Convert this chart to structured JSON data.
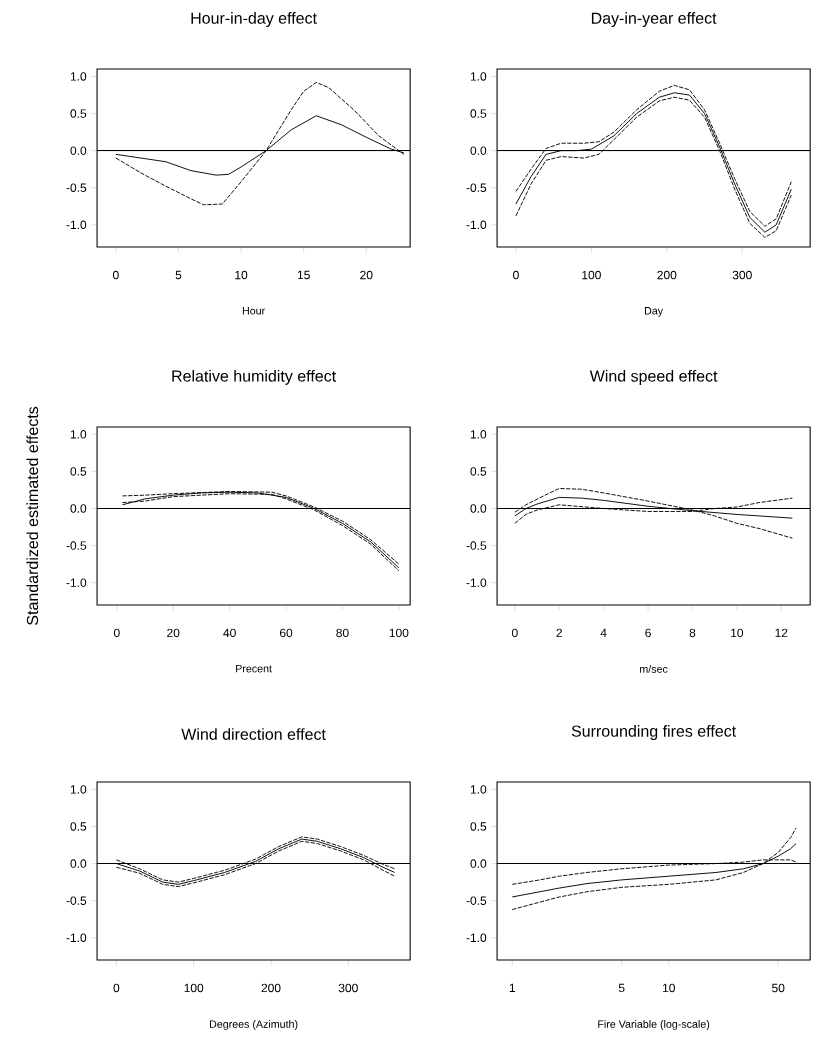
{
  "chart_data": [
    {
      "type": "line",
      "title": "Hour-in-day effect",
      "xlabel": "Hour",
      "xlim": [
        -1.5,
        23.5
      ],
      "xticks": [
        0,
        5,
        10,
        15,
        20
      ],
      "ylim": [
        -1.3,
        1.1
      ],
      "yticks": [
        {
          "value": -1,
          "label": "-1.0"
        },
        {
          "value": -0.5,
          "label": "-0.5"
        },
        {
          "value": 0,
          "label": "0.0"
        },
        {
          "value": 0.5,
          "label": "0.5"
        },
        {
          "value": 1,
          "label": "1.0"
        }
      ],
      "ref_lines": [
        {
          "axis": "y",
          "value": 0,
          "color": "#000000",
          "line_style": "solid"
        }
      ],
      "series": [
        {
          "color": "#000000",
          "line_style": "solid",
          "x": [
            0,
            2,
            4,
            6,
            8,
            9,
            10,
            12,
            14,
            16,
            18,
            20,
            22,
            23
          ],
          "values": [
            -0.05,
            -0.1,
            -0.15,
            -0.27,
            -0.33,
            -0.32,
            -0.22,
            0.0,
            0.28,
            0.47,
            0.35,
            0.18,
            0.02,
            -0.03
          ]
        },
        {
          "color": "#000000",
          "line_style": "dashed",
          "x": [
            0,
            2,
            4,
            6,
            7,
            8.5,
            10,
            12,
            14,
            15,
            16,
            17,
            19,
            21,
            23
          ],
          "values": [
            -0.1,
            -0.3,
            -0.48,
            -0.65,
            -0.73,
            -0.72,
            -0.42,
            0.0,
            0.55,
            0.8,
            0.92,
            0.85,
            0.55,
            0.2,
            -0.05
          ]
        }
      ]
    },
    {
      "type": "line",
      "title": "Day-in-year effect",
      "xlabel": "Day",
      "xlim": [
        -25,
        390
      ],
      "xticks": [
        0,
        100,
        200,
        300
      ],
      "ylim": [
        -1.3,
        1.1
      ],
      "yticks": [
        {
          "value": -1,
          "label": "-1.0"
        },
        {
          "value": -0.5,
          "label": "-0.5"
        },
        {
          "value": 0,
          "label": "0.0"
        },
        {
          "value": 0.5,
          "label": "0.5"
        },
        {
          "value": 1,
          "label": "1.0"
        }
      ],
      "ref_lines": [
        {
          "axis": "y",
          "value": 0,
          "color": "#000000",
          "line_style": "solid"
        }
      ],
      "series": [
        {
          "color": "#000000",
          "line_style": "solid",
          "x": [
            0,
            20,
            40,
            60,
            80,
            100,
            130,
            160,
            190,
            210,
            230,
            250,
            270,
            290,
            310,
            330,
            345,
            365
          ],
          "values": [
            -0.72,
            -0.35,
            -0.05,
            0.0,
            0.0,
            0.02,
            0.2,
            0.5,
            0.72,
            0.78,
            0.75,
            0.5,
            0.05,
            -0.45,
            -0.9,
            -1.1,
            -1.0,
            -0.52
          ]
        },
        {
          "color": "#000000",
          "line_style": "dashed",
          "x": [
            0,
            20,
            40,
            60,
            90,
            110,
            130,
            160,
            190,
            210,
            230,
            250,
            270,
            290,
            310,
            330,
            345,
            365
          ],
          "values": [
            -0.55,
            -0.25,
            0.03,
            0.1,
            0.1,
            0.12,
            0.25,
            0.55,
            0.8,
            0.88,
            0.82,
            0.55,
            0.1,
            -0.38,
            -0.82,
            -1.02,
            -0.92,
            -0.42
          ]
        },
        {
          "color": "#000000",
          "line_style": "dashed",
          "x": [
            0,
            20,
            40,
            60,
            90,
            110,
            130,
            160,
            190,
            210,
            230,
            250,
            270,
            290,
            310,
            330,
            345,
            365
          ],
          "values": [
            -0.88,
            -0.45,
            -0.13,
            -0.08,
            -0.1,
            -0.05,
            0.15,
            0.45,
            0.67,
            0.72,
            0.68,
            0.45,
            0.0,
            -0.52,
            -0.98,
            -1.17,
            -1.08,
            -0.6
          ]
        }
      ]
    },
    {
      "type": "line",
      "title": "Relative humidity effect",
      "xlabel": "Precent",
      "ylabel": "Standardized estimated effects",
      "xlim": [
        -7,
        104
      ],
      "xticks": [
        0,
        20,
        40,
        60,
        80,
        100
      ],
      "ylim": [
        -1.3,
        1.1
      ],
      "yticks": [
        {
          "value": -1,
          "label": "-1.0"
        },
        {
          "value": -0.5,
          "label": "-0.5"
        },
        {
          "value": 0,
          "label": "0.0"
        },
        {
          "value": 0.5,
          "label": "0.5"
        },
        {
          "value": 1,
          "label": "1.0"
        }
      ],
      "ref_lines": [
        {
          "axis": "y",
          "value": 0,
          "color": "#000000",
          "line_style": "solid"
        }
      ],
      "series": [
        {
          "color": "#000000",
          "line_style": "solid",
          "x": [
            2,
            10,
            20,
            30,
            40,
            50,
            60,
            70,
            80,
            90,
            100
          ],
          "values": [
            0.05,
            0.13,
            0.18,
            0.21,
            0.22,
            0.21,
            0.15,
            0.0,
            -0.2,
            -0.45,
            -0.8
          ]
        },
        {
          "color": "#000000",
          "line_style": "dashed",
          "x": [
            2,
            10,
            20,
            40,
            55,
            60,
            70,
            80,
            90,
            100
          ],
          "values": [
            0.17,
            0.18,
            0.2,
            0.23,
            0.22,
            0.17,
            0.02,
            -0.17,
            -0.42,
            -0.75
          ]
        },
        {
          "color": "#000000",
          "line_style": "dashed",
          "x": [
            2,
            10,
            20,
            40,
            55,
            60,
            70,
            80,
            90,
            100
          ],
          "values": [
            0.08,
            0.1,
            0.16,
            0.2,
            0.19,
            0.13,
            -0.02,
            -0.23,
            -0.48,
            -0.84
          ]
        }
      ]
    },
    {
      "type": "line",
      "title": "Wind speed effect",
      "xlabel": "m/sec",
      "xlim": [
        -0.8,
        13.3
      ],
      "xticks": [
        0,
        2,
        4,
        6,
        8,
        10,
        12
      ],
      "ylim": [
        -1.3,
        1.1
      ],
      "yticks": [
        {
          "value": -1,
          "label": "-1.0"
        },
        {
          "value": -0.5,
          "label": "-0.5"
        },
        {
          "value": 0,
          "label": "0.0"
        },
        {
          "value": 0.5,
          "label": "0.5"
        },
        {
          "value": 1,
          "label": "1.0"
        }
      ],
      "ref_lines": [
        {
          "axis": "y",
          "value": 0,
          "color": "#000000",
          "line_style": "solid"
        }
      ],
      "series": [
        {
          "color": "#000000",
          "line_style": "solid",
          "x": [
            0,
            0.5,
            1,
            2,
            3,
            4,
            6,
            8,
            10,
            12.5
          ],
          "values": [
            -0.1,
            0.0,
            0.06,
            0.15,
            0.14,
            0.11,
            0.03,
            -0.03,
            -0.08,
            -0.13
          ]
        },
        {
          "color": "#000000",
          "line_style": "dashed",
          "x": [
            0,
            0.5,
            1.5,
            2,
            3,
            4,
            6,
            8,
            9,
            10,
            11,
            12.5
          ],
          "values": [
            -0.05,
            0.05,
            0.2,
            0.27,
            0.26,
            0.21,
            0.1,
            -0.02,
            -0.1,
            -0.2,
            -0.27,
            -0.4
          ]
        },
        {
          "color": "#000000",
          "line_style": "dashed",
          "x": [
            0,
            0.5,
            1,
            2,
            4,
            6,
            8,
            9,
            10,
            11,
            12.5
          ],
          "values": [
            -0.2,
            -0.08,
            -0.02,
            0.05,
            0.0,
            -0.04,
            -0.04,
            0.0,
            0.02,
            0.08,
            0.14
          ]
        }
      ]
    },
    {
      "type": "line",
      "title": "Wind direction effect",
      "xlabel": "Degrees (Azimuth)",
      "xlim": [
        -25,
        380
      ],
      "xticks": [
        0,
        100,
        200,
        300
      ],
      "ylim": [
        -1.3,
        1.1
      ],
      "yticks": [
        {
          "value": -1,
          "label": "-1.0"
        },
        {
          "value": -0.5,
          "label": "-0.5"
        },
        {
          "value": 0,
          "label": "0.0"
        },
        {
          "value": 0.5,
          "label": "0.5"
        },
        {
          "value": 1,
          "label": "1.0"
        }
      ],
      "ref_lines": [
        {
          "axis": "y",
          "value": 0,
          "color": "#000000",
          "line_style": "solid"
        }
      ],
      "series": [
        {
          "color": "#000000",
          "line_style": "solid",
          "x": [
            0,
            30,
            60,
            80,
            100,
            140,
            180,
            210,
            240,
            260,
            290,
            320,
            345,
            360
          ],
          "values": [
            0.0,
            -0.1,
            -0.25,
            -0.28,
            -0.23,
            -0.12,
            0.03,
            0.2,
            0.33,
            0.3,
            0.2,
            0.08,
            -0.05,
            -0.12
          ]
        },
        {
          "color": "#000000",
          "line_style": "dashed",
          "x": [
            0,
            30,
            60,
            80,
            100,
            140,
            180,
            210,
            240,
            260,
            290,
            320,
            345,
            360
          ],
          "values": [
            0.05,
            -0.07,
            -0.22,
            -0.25,
            -0.2,
            -0.09,
            0.06,
            0.23,
            0.36,
            0.33,
            0.23,
            0.11,
            -0.01,
            -0.07
          ]
        },
        {
          "color": "#000000",
          "line_style": "dashed",
          "x": [
            0,
            30,
            60,
            80,
            100,
            140,
            180,
            210,
            240,
            260,
            290,
            320,
            345,
            360
          ],
          "values": [
            -0.05,
            -0.13,
            -0.28,
            -0.31,
            -0.26,
            -0.15,
            0.0,
            0.17,
            0.3,
            0.27,
            0.17,
            0.05,
            -0.09,
            -0.17
          ]
        }
      ]
    },
    {
      "type": "line",
      "title": "Surrounding fires effect",
      "xlabel": "Fire Variable (log-scale)",
      "log": "x",
      "xlim": [
        0.8,
        80
      ],
      "xticks": [
        1,
        5,
        10,
        50
      ],
      "ylim": [
        -1.3,
        1.1
      ],
      "yticks": [
        {
          "value": -1,
          "label": "-1.0"
        },
        {
          "value": -0.5,
          "label": "-0.5"
        },
        {
          "value": 0,
          "label": "0.0"
        },
        {
          "value": 0.5,
          "label": "0.5"
        },
        {
          "value": 1,
          "label": "1.0"
        }
      ],
      "ref_lines": [
        {
          "axis": "y",
          "value": 0,
          "color": "#000000",
          "line_style": "solid"
        }
      ],
      "series": [
        {
          "color": "#000000",
          "line_style": "solid",
          "x": [
            1,
            1.5,
            2,
            3,
            5,
            10,
            20,
            30,
            40,
            50,
            60,
            65
          ],
          "values": [
            -0.45,
            -0.38,
            -0.33,
            -0.27,
            -0.22,
            -0.17,
            -0.12,
            -0.07,
            0.0,
            0.1,
            0.2,
            0.27
          ]
        },
        {
          "color": "#000000",
          "line_style": "dashed",
          "x": [
            1,
            1.5,
            2,
            3,
            5,
            10,
            20,
            30,
            40,
            50,
            60,
            65
          ],
          "values": [
            -0.28,
            -0.22,
            -0.17,
            -0.12,
            -0.07,
            -0.02,
            0.0,
            0.02,
            0.05,
            0.05,
            0.05,
            0.02
          ]
        },
        {
          "color": "#000000",
          "line_style": "dashed",
          "x": [
            1,
            1.5,
            2,
            3,
            5,
            10,
            20,
            30,
            40,
            50,
            60,
            65
          ],
          "values": [
            -0.62,
            -0.52,
            -0.45,
            -0.38,
            -0.32,
            -0.28,
            -0.22,
            -0.12,
            0.0,
            0.15,
            0.35,
            0.48
          ]
        }
      ]
    }
  ]
}
